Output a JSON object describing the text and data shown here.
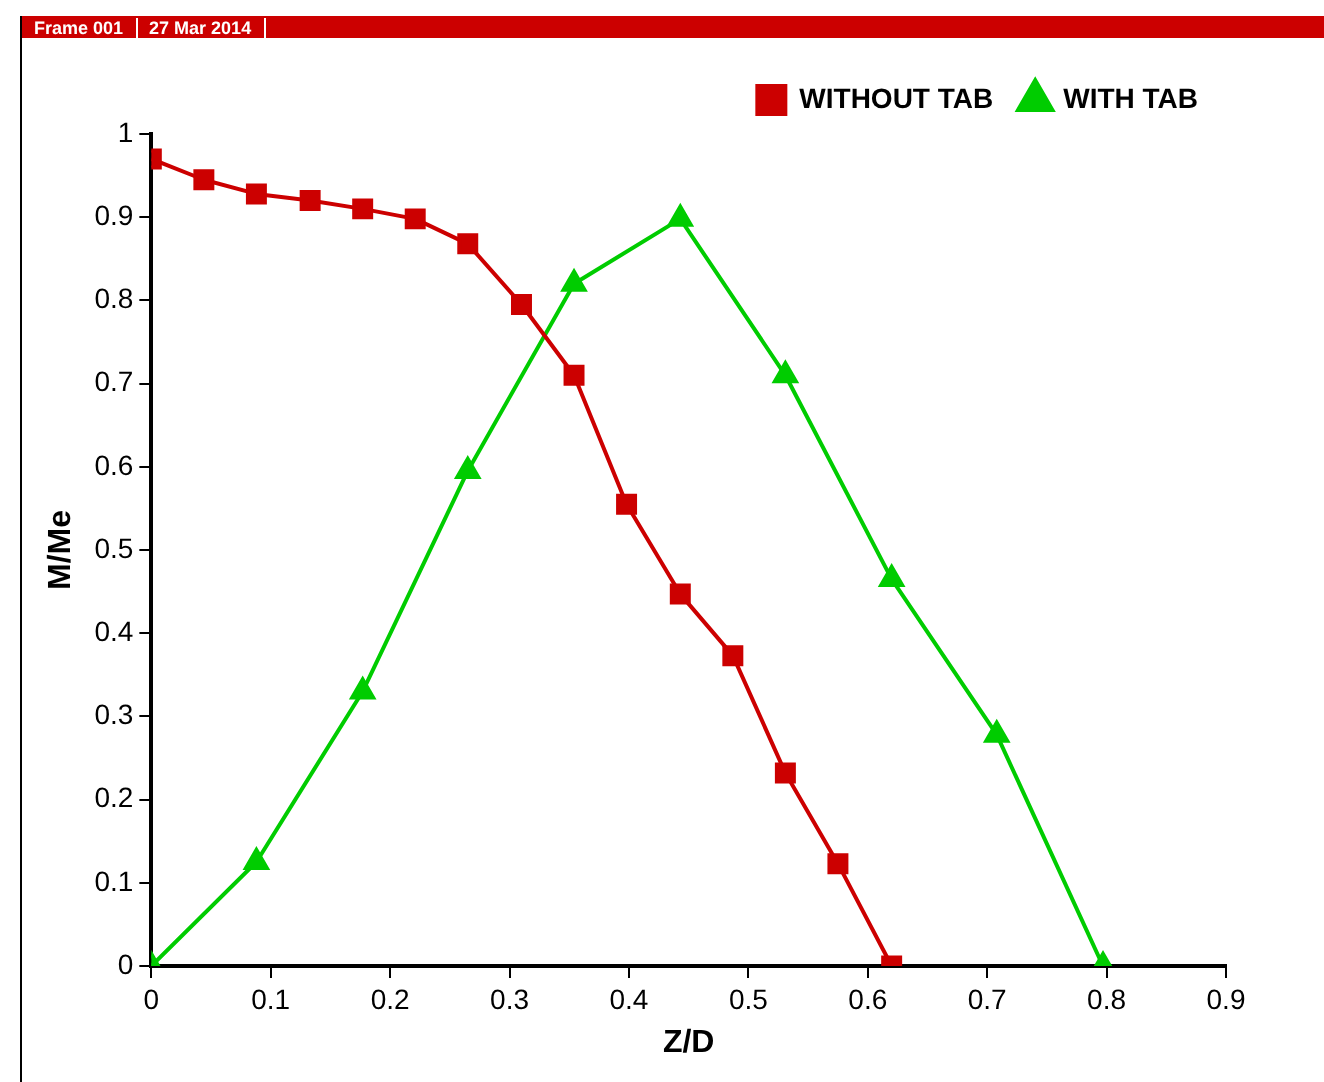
{
  "chart_data": {
    "type": "line",
    "xlabel": "Z/D",
    "ylabel": "M/Me",
    "annotations": [
      "Frame 001",
      "27 Mar 2014"
    ],
    "xlim": [
      0,
      0.9
    ],
    "xticks": [
      0,
      0.1,
      0.2,
      0.3,
      0.4,
      0.5,
      0.6,
      0.7,
      0.8,
      0.9
    ],
    "ylim": [
      0,
      1
    ],
    "yticks": [
      0,
      0.1,
      0.2,
      0.3,
      0.4,
      0.5,
      0.6,
      0.7,
      0.8,
      0.9,
      1
    ],
    "grid": false,
    "legend": "top right",
    "line_style": "solid",
    "series": [
      {
        "name": "WITHOUT TAB",
        "color": "#cc0000",
        "marker": "square",
        "x": [
          0,
          0.044,
          0.088,
          0.133,
          0.177,
          0.221,
          0.265,
          0.31,
          0.354,
          0.398,
          0.443,
          0.487,
          0.531,
          0.575,
          0.62
        ],
        "values": [
          0.97,
          0.945,
          0.928,
          0.92,
          0.91,
          0.898,
          0.868,
          0.795,
          0.71,
          0.555,
          0.447,
          0.373,
          0.232,
          0.123,
          0
        ]
      },
      {
        "name": "WITH TAB",
        "color": "#00cc00",
        "marker": "triangle",
        "x": [
          0,
          0.088,
          0.177,
          0.265,
          0.354,
          0.443,
          0.531,
          0.62,
          0.708,
          0.797
        ],
        "values": [
          0,
          0.125,
          0.33,
          0.595,
          0.82,
          0.898,
          0.71,
          0.465,
          0.278,
          0
        ]
      }
    ]
  }
}
